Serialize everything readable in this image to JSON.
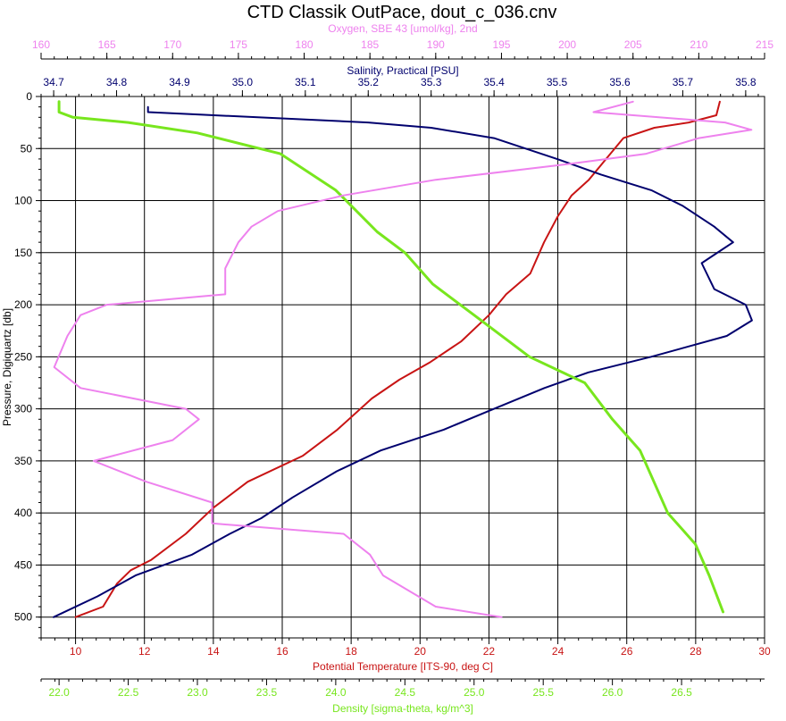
{
  "chart_data": {
    "type": "line",
    "title": "CTD Classik OutPace, dout_c_036.cnv",
    "grid": true,
    "colors": {
      "oxygen": "#ee82ee",
      "salinity": "#00006e",
      "temperature": "#c81414",
      "density": "#78e61e",
      "grid": "#000000"
    },
    "y_axis": {
      "label": "Pressure, Digiquartz [db]",
      "range": [
        0,
        520
      ],
      "inverted": true,
      "ticks": [
        "0",
        "50",
        "100",
        "150",
        "200",
        "250",
        "300",
        "350",
        "400",
        "450",
        "500"
      ]
    },
    "x_axes": [
      {
        "id": "oxygen",
        "label": "Oxygen, SBE 43 [umol/kg], 2nd",
        "position": "top",
        "range": [
          160,
          215
        ],
        "ticks": [
          "160",
          "165",
          "170",
          "175",
          "180",
          "185",
          "190",
          "195",
          "200",
          "205",
          "210",
          "215"
        ]
      },
      {
        "id": "salinity",
        "label": "Salinity, Practical [PSU]",
        "position": "top",
        "range": [
          34.68,
          35.83
        ],
        "ticks": [
          "34.7",
          "34.8",
          "34.9",
          "35.0",
          "35.1",
          "35.2",
          "35.3",
          "35.4",
          "35.5",
          "35.6",
          "35.7",
          "35.8"
        ]
      },
      {
        "id": "temperature",
        "label": "Potential Temperature [ITS-90, deg C]",
        "position": "bottom",
        "range": [
          9,
          30
        ],
        "ticks": [
          "10",
          "12",
          "14",
          "16",
          "18",
          "20",
          "22",
          "24",
          "26",
          "28",
          "30"
        ]
      },
      {
        "id": "density",
        "label": "Density [sigma-theta, kg/m^3]",
        "position": "bottom",
        "range": [
          21.87,
          27.1
        ],
        "ticks": [
          "22.0",
          "22.5",
          "23.0",
          "23.5",
          "24.0",
          "24.5",
          "25.0",
          "25.5",
          "26.0",
          "26.5"
        ]
      }
    ],
    "series": [
      {
        "axis": "temperature",
        "points": [
          [
            28.7,
            5
          ],
          [
            28.6,
            18
          ],
          [
            27.8,
            25
          ],
          [
            26.8,
            30
          ],
          [
            25.9,
            40
          ],
          [
            25.4,
            60
          ],
          [
            24.9,
            80
          ],
          [
            24.4,
            95
          ],
          [
            24.0,
            115
          ],
          [
            23.6,
            140
          ],
          [
            23.2,
            170
          ],
          [
            22.5,
            190
          ],
          [
            22.0,
            210
          ],
          [
            21.2,
            235
          ],
          [
            20.3,
            255
          ],
          [
            19.4,
            272
          ],
          [
            18.6,
            290
          ],
          [
            17.6,
            320
          ],
          [
            16.6,
            345
          ],
          [
            15.0,
            370
          ],
          [
            14.0,
            395
          ],
          [
            13.2,
            420
          ],
          [
            12.2,
            445
          ],
          [
            11.6,
            455
          ],
          [
            11.2,
            468
          ],
          [
            10.8,
            490
          ],
          [
            10.0,
            500
          ]
        ]
      },
      {
        "axis": "salinity",
        "points": [
          [
            34.85,
            10
          ],
          [
            34.85,
            15
          ],
          [
            35.2,
            25
          ],
          [
            35.3,
            30
          ],
          [
            35.4,
            40
          ],
          [
            35.5,
            60
          ],
          [
            35.57,
            75
          ],
          [
            35.65,
            90
          ],
          [
            35.7,
            105
          ],
          [
            35.75,
            125
          ],
          [
            35.78,
            140
          ],
          [
            35.76,
            148
          ],
          [
            35.73,
            160
          ],
          [
            35.75,
            185
          ],
          [
            35.8,
            200
          ],
          [
            35.81,
            215
          ],
          [
            35.77,
            230
          ],
          [
            35.65,
            250
          ],
          [
            35.55,
            265
          ],
          [
            35.48,
            280
          ],
          [
            35.4,
            300
          ],
          [
            35.32,
            320
          ],
          [
            35.22,
            340
          ],
          [
            35.15,
            360
          ],
          [
            35.08,
            385
          ],
          [
            35.03,
            405
          ],
          [
            34.98,
            420
          ],
          [
            34.92,
            440
          ],
          [
            34.83,
            460
          ],
          [
            34.77,
            480
          ],
          [
            34.7,
            500
          ]
        ]
      },
      {
        "axis": "density",
        "points": [
          [
            22.0,
            5
          ],
          [
            22.0,
            15
          ],
          [
            22.1,
            20
          ],
          [
            22.5,
            25
          ],
          [
            23.0,
            35
          ],
          [
            23.6,
            55
          ],
          [
            24.0,
            90
          ],
          [
            24.3,
            130
          ],
          [
            24.5,
            150
          ],
          [
            24.7,
            180
          ],
          [
            25.0,
            210
          ],
          [
            25.4,
            250
          ],
          [
            25.8,
            275
          ],
          [
            26.0,
            310
          ],
          [
            26.2,
            340
          ],
          [
            26.3,
            370
          ],
          [
            26.4,
            400
          ],
          [
            26.6,
            430
          ],
          [
            26.7,
            460
          ],
          [
            26.8,
            495
          ]
        ]
      },
      {
        "axis": "oxygen",
        "points": [
          [
            205,
            5
          ],
          [
            202,
            15
          ],
          [
            212,
            25
          ],
          [
            214,
            32
          ],
          [
            210,
            40
          ],
          [
            206,
            55
          ],
          [
            200,
            65
          ],
          [
            190,
            80
          ],
          [
            183,
            95
          ],
          [
            178,
            110
          ],
          [
            176,
            125
          ],
          [
            175,
            140
          ],
          [
            174,
            165
          ],
          [
            174,
            190
          ],
          [
            165,
            200
          ],
          [
            163,
            210
          ],
          [
            162,
            230
          ],
          [
            161,
            260
          ],
          [
            163,
            280
          ],
          [
            171,
            300
          ],
          [
            172,
            310
          ],
          [
            170,
            330
          ],
          [
            164,
            350
          ],
          [
            168,
            370
          ],
          [
            173,
            390
          ],
          [
            173,
            410
          ],
          [
            183,
            420
          ],
          [
            185,
            440
          ],
          [
            186,
            460
          ],
          [
            190,
            490
          ],
          [
            195,
            500
          ]
        ]
      }
    ]
  }
}
